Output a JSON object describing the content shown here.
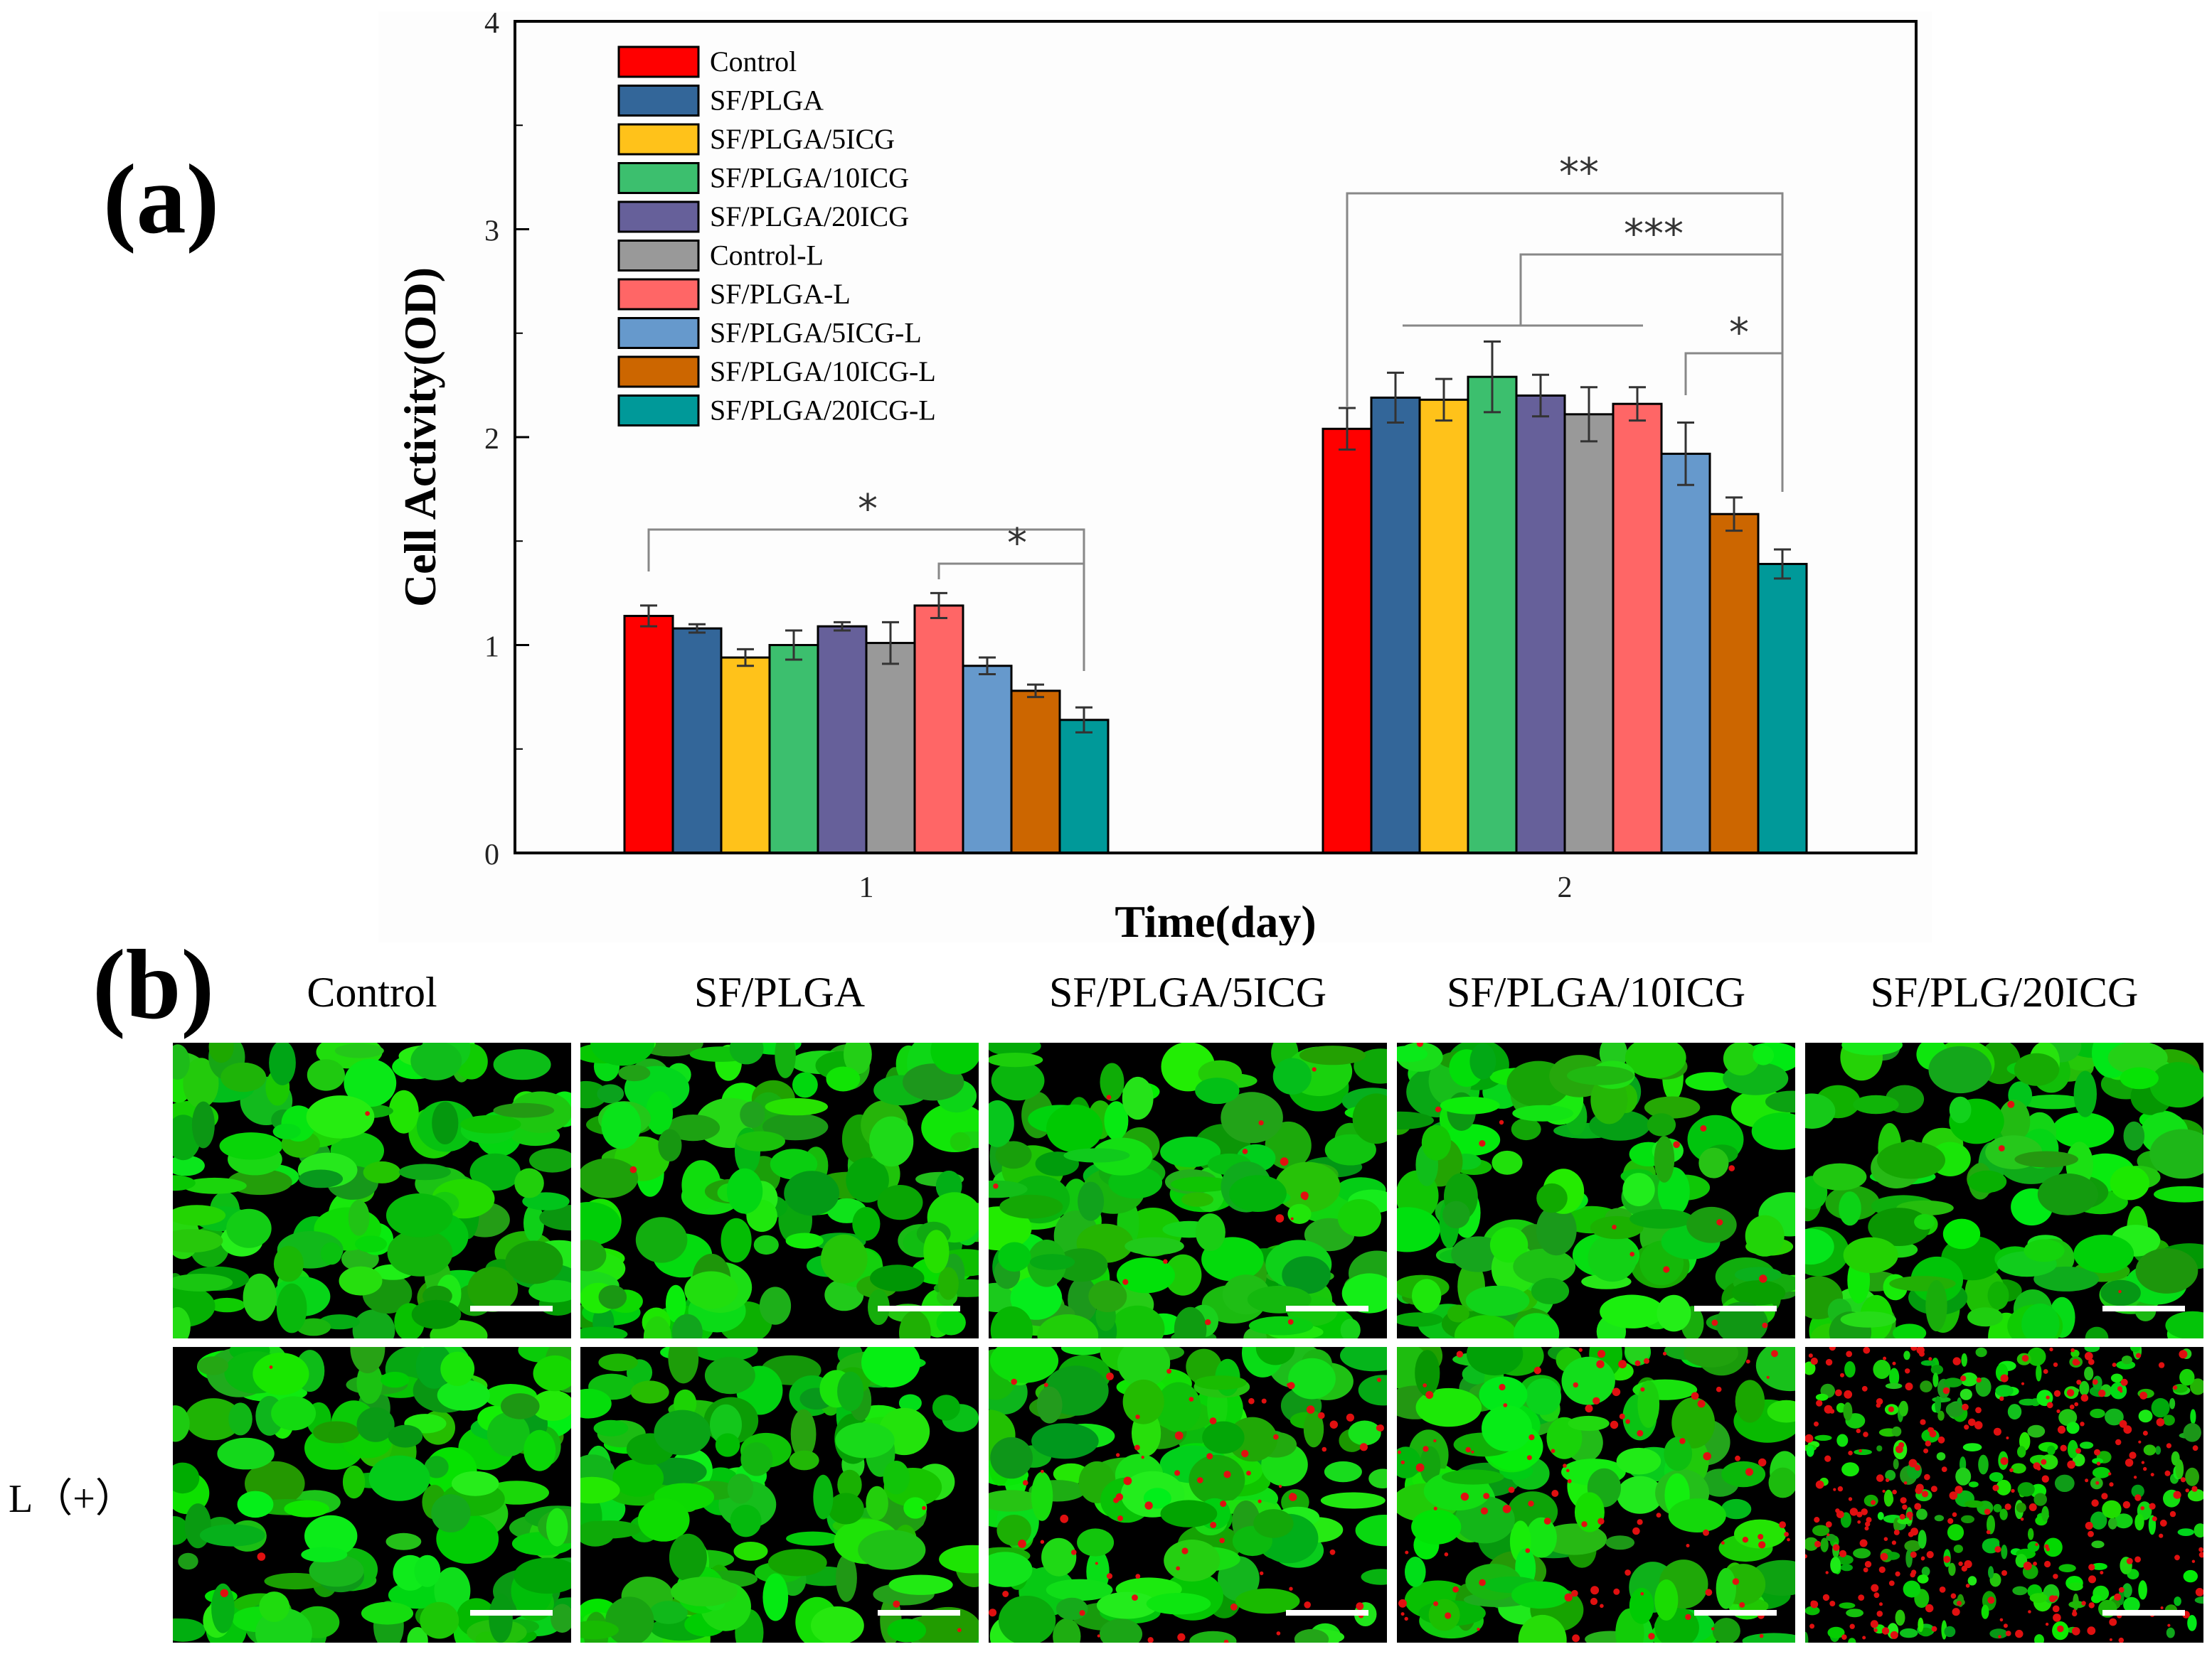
{
  "figure": {
    "panel_a_label": "(a)",
    "panel_b_label": "(b)"
  },
  "chart_data": {
    "type": "bar",
    "categories": [
      "1",
      "2"
    ],
    "xlabel": "Time(day)",
    "ylabel": "Cell Activity(OD)",
    "ylim": [
      0,
      4
    ],
    "yticks": [
      "0",
      "1",
      "2",
      "3",
      "4"
    ],
    "legend_position": "top-left",
    "series": [
      {
        "name": "Control",
        "color": "#ff0000",
        "values": [
          1.14,
          2.04
        ],
        "errors": [
          0.05,
          0.1
        ]
      },
      {
        "name": "SF/PLGA",
        "color": "#336699",
        "values": [
          1.08,
          2.19
        ],
        "errors": [
          0.02,
          0.12
        ]
      },
      {
        "name": "SF/PLGA/5ICG",
        "color": "#ffc21a",
        "values": [
          0.94,
          2.18
        ],
        "errors": [
          0.04,
          0.1
        ]
      },
      {
        "name": "SF/PLGA/10ICG",
        "color": "#3cbf6e",
        "values": [
          1.0,
          2.29
        ],
        "errors": [
          0.07,
          0.17
        ]
      },
      {
        "name": "SF/PLGA/20ICG",
        "color": "#66609a",
        "values": [
          1.09,
          2.2
        ],
        "errors": [
          0.02,
          0.1
        ]
      },
      {
        "name": "Control-L",
        "color": "#999999",
        "values": [
          1.01,
          2.11
        ],
        "errors": [
          0.1,
          0.13
        ]
      },
      {
        "name": "SF/PLGA-L",
        "color": "#ff6666",
        "values": [
          1.19,
          2.16
        ],
        "errors": [
          0.06,
          0.08
        ]
      },
      {
        "name": "SF/PLGA/5ICG-L",
        "color": "#6699cc",
        "values": [
          0.9,
          1.92
        ],
        "errors": [
          0.04,
          0.15
        ]
      },
      {
        "name": "SF/PLGA/10ICG-L",
        "color": "#cc6600",
        "values": [
          0.78,
          1.63
        ],
        "errors": [
          0.03,
          0.08
        ]
      },
      {
        "name": "SF/PLGA/20ICG-L",
        "color": "#009999",
        "values": [
          0.64,
          1.39
        ],
        "errors": [
          0.06,
          0.07
        ]
      }
    ],
    "significance": [
      {
        "label": "*",
        "day": "1",
        "from": "Control",
        "to": "SF/PLGA/20ICG-L"
      },
      {
        "label": "*",
        "day": "1",
        "from": "SF/PLGA-L",
        "to": "SF/PLGA/20ICG-L"
      },
      {
        "label": "**",
        "day": "2",
        "from": "Control",
        "to": "SF/PLGA/20ICG-L"
      },
      {
        "label": "***",
        "day": "2",
        "from": "SF/PLGA (group)",
        "to": "SF/PLGA/20ICG-L"
      },
      {
        "label": "*",
        "day": "2",
        "from": "SF/PLGA/5ICG-L",
        "to": "SF/PLGA/20ICG-L"
      }
    ]
  },
  "panel_b": {
    "columns": [
      "Control",
      "SF/PLGA",
      "SF/PLGA/5ICG",
      "SF/PLGA/10ICG",
      "SF/PLG/20ICG"
    ],
    "row_labels": [
      "",
      "L（+）"
    ],
    "red_fraction": [
      [
        0.002,
        0.002,
        0.02,
        0.02,
        0.004
      ],
      [
        0.004,
        0.004,
        0.1,
        0.14,
        0.4
      ]
    ]
  }
}
